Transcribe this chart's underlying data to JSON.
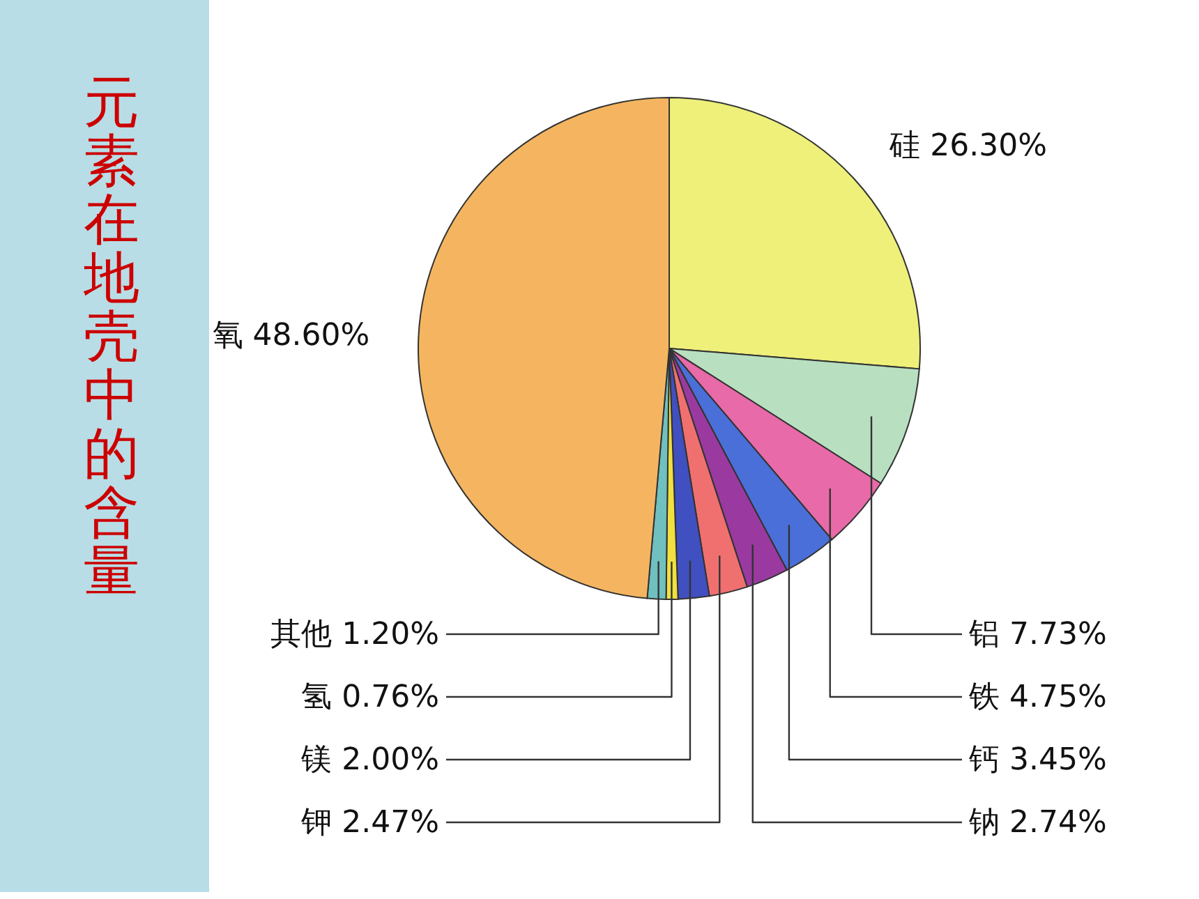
{
  "chart_data": {
    "type": "pie",
    "title": "元素在地壳中的含量",
    "categories": [
      "硅",
      "铝",
      "铁",
      "钙",
      "钠",
      "钾",
      "镁",
      "氢",
      "其他",
      "氧"
    ],
    "values": [
      26.3,
      7.73,
      4.75,
      3.45,
      2.74,
      2.47,
      2.0,
      0.76,
      1.2,
      48.6
    ],
    "value_labels": [
      "26.30%",
      "7.73%",
      "4.75%",
      "3.45%",
      "2.74%",
      "2.47%",
      "2.00%",
      "0.76%",
      "1.20%",
      "48.60%"
    ],
    "colors": [
      "#eef07a",
      "#b8e0c0",
      "#e86aa8",
      "#4b6fd8",
      "#9a3aa0",
      "#f07070",
      "#4050c0",
      "#f0e040",
      "#70c0c0",
      "#f5b560"
    ]
  }
}
